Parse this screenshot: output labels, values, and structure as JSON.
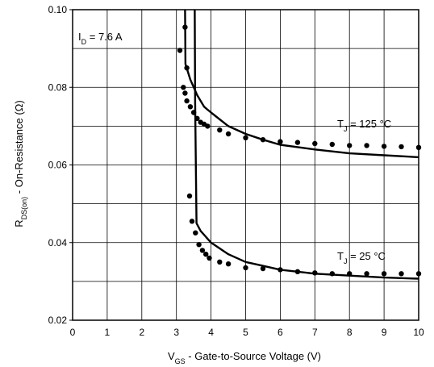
{
  "chart_data": {
    "type": "line",
    "xlabel": {
      "main": "V",
      "sub": "GS",
      "rest": " - Gate-to-Source Voltage (V)"
    },
    "ylabel": {
      "main": "R",
      "sub": "DS(on)",
      "rest": " - On-Resistance (Ω)"
    },
    "xlim": [
      0,
      10
    ],
    "ylim": [
      0.02,
      0.1
    ],
    "xticks": [
      "0",
      "1",
      "2",
      "3",
      "4",
      "5",
      "6",
      "7",
      "8",
      "9",
      "10"
    ],
    "yticks": [
      "0.02",
      "0.04",
      "0.06",
      "0.08",
      "0.10"
    ],
    "grid": true,
    "annotation": {
      "main": "I",
      "sub": "D",
      "rest": " = 7.6 A"
    },
    "series": [
      {
        "name": {
          "main": "T",
          "sub": "J",
          "rest": " = 125 °C"
        },
        "line": [
          [
            3.25,
            0.1
          ],
          [
            3.26,
            0.086
          ],
          [
            3.4,
            0.082
          ],
          [
            3.6,
            0.078
          ],
          [
            3.8,
            0.075
          ],
          [
            4.0,
            0.0735
          ],
          [
            4.5,
            0.07
          ],
          [
            5.0,
            0.068
          ],
          [
            5.5,
            0.0665
          ],
          [
            6.0,
            0.0652
          ],
          [
            7.0,
            0.064
          ],
          [
            8.0,
            0.063
          ],
          [
            9.0,
            0.0625
          ],
          [
            10.0,
            0.062
          ]
        ],
        "points": [
          [
            3.1,
            0.0895
          ],
          [
            3.25,
            0.0955
          ],
          [
            3.3,
            0.085
          ],
          [
            3.2,
            0.08
          ],
          [
            3.25,
            0.0785
          ],
          [
            3.3,
            0.0765
          ],
          [
            3.4,
            0.075
          ],
          [
            3.5,
            0.0735
          ],
          [
            3.6,
            0.072
          ],
          [
            3.7,
            0.071
          ],
          [
            3.8,
            0.0705
          ],
          [
            3.9,
            0.07
          ],
          [
            4.25,
            0.069
          ],
          [
            4.5,
            0.068
          ],
          [
            5.0,
            0.067
          ],
          [
            5.5,
            0.0665
          ],
          [
            6.0,
            0.066
          ],
          [
            6.5,
            0.0658
          ],
          [
            7.0,
            0.0655
          ],
          [
            7.5,
            0.0653
          ],
          [
            8.0,
            0.065
          ],
          [
            8.5,
            0.065
          ],
          [
            9.0,
            0.0648
          ],
          [
            9.5,
            0.0647
          ],
          [
            10.0,
            0.0645
          ]
        ]
      },
      {
        "name": {
          "main": "T",
          "sub": "J",
          "rest": " = 25 °C"
        },
        "line": [
          [
            3.53,
            0.1
          ],
          [
            3.54,
            0.076
          ],
          [
            3.58,
            0.045
          ],
          [
            3.7,
            0.043
          ],
          [
            4.0,
            0.04
          ],
          [
            4.5,
            0.037
          ],
          [
            5.0,
            0.035
          ],
          [
            5.5,
            0.034
          ],
          [
            6.0,
            0.033
          ],
          [
            7.0,
            0.032
          ],
          [
            8.0,
            0.0315
          ],
          [
            9.0,
            0.031
          ],
          [
            10.0,
            0.0307
          ]
        ],
        "points": [
          [
            3.38,
            0.052
          ],
          [
            3.45,
            0.0455
          ],
          [
            3.55,
            0.0425
          ],
          [
            3.65,
            0.0395
          ],
          [
            3.75,
            0.038
          ],
          [
            3.85,
            0.037
          ],
          [
            3.95,
            0.036
          ],
          [
            4.25,
            0.035
          ],
          [
            4.5,
            0.0345
          ],
          [
            5.0,
            0.0335
          ],
          [
            5.5,
            0.0333
          ],
          [
            6.0,
            0.033
          ],
          [
            6.5,
            0.0325
          ],
          [
            7.0,
            0.0322
          ],
          [
            7.5,
            0.032
          ],
          [
            8.0,
            0.032
          ],
          [
            8.5,
            0.032
          ],
          [
            9.0,
            0.032
          ],
          [
            9.5,
            0.032
          ],
          [
            10.0,
            0.032
          ]
        ]
      }
    ]
  }
}
